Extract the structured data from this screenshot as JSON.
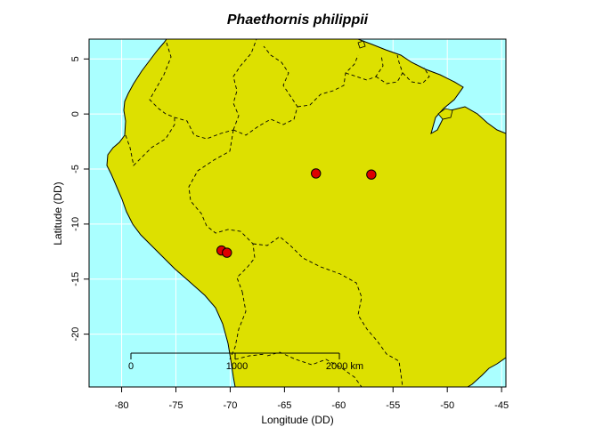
{
  "title": "Phaethornis philippii",
  "colors": {
    "ocean": "#aaffff",
    "land": "#dde000",
    "point_fill": "#dd0000",
    "border": "#000000",
    "grid": "#ffffff"
  },
  "map": {
    "lon_range": [
      -83,
      -44.6
    ],
    "lat_range": [
      -24.8,
      6.8
    ]
  },
  "axes": {
    "xlabel": "Longitude (DD)",
    "ylabel": "Latitude (DD)",
    "x_ticks": [
      -80,
      -75,
      -70,
      -65,
      -60,
      -55,
      -50,
      -45
    ],
    "y_ticks": [
      5,
      0,
      -5,
      -10,
      -15,
      -20
    ]
  },
  "records": [
    {
      "lon": -62.1,
      "lat": -5.4
    },
    {
      "lon": -57.0,
      "lat": -5.5
    },
    {
      "lon": -70.8,
      "lat": -12.4
    },
    {
      "lon": -70.3,
      "lat": -12.6
    }
  ],
  "scale_bar": {
    "labels": [
      "0",
      "1000",
      "2000 km"
    ]
  }
}
